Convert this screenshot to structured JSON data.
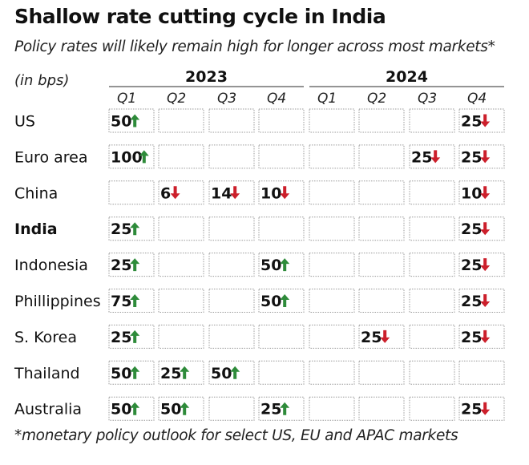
{
  "title": "Shallow rate cutting cycle in India",
  "subtitle": "Policy rates will likely remain high for longer across most markets*",
  "units_label": "(in bps)",
  "footnote": "*monetary policy outlook for select US, EU and APAC markets",
  "colors": {
    "up": "#2e8b3a",
    "down": "#cc1f2b",
    "cell_border": "#9a9a9a"
  },
  "chart_data": {
    "type": "table",
    "years": [
      {
        "label": "2023",
        "quarters": [
          "Q1",
          "Q2",
          "Q3",
          "Q4"
        ]
      },
      {
        "label": "2024",
        "quarters": [
          "Q1",
          "Q2",
          "Q3",
          "Q4"
        ]
      }
    ],
    "columns": [
      "2023 Q1",
      "2023 Q2",
      "2023 Q3",
      "2023 Q4",
      "2024 Q1",
      "2024 Q2",
      "2024 Q3",
      "2024 Q4"
    ],
    "rows": [
      {
        "name": "US",
        "bold": false,
        "cells": [
          {
            "v": 50,
            "dir": "up"
          },
          null,
          null,
          null,
          null,
          null,
          null,
          {
            "v": 25,
            "dir": "down"
          }
        ]
      },
      {
        "name": "Euro area",
        "bold": false,
        "cells": [
          {
            "v": 100,
            "dir": "up"
          },
          null,
          null,
          null,
          null,
          null,
          {
            "v": 25,
            "dir": "down"
          },
          {
            "v": 25,
            "dir": "down"
          }
        ]
      },
      {
        "name": "China",
        "bold": false,
        "cells": [
          null,
          {
            "v": 6,
            "dir": "down"
          },
          {
            "v": 14,
            "dir": "down"
          },
          {
            "v": 10,
            "dir": "down"
          },
          null,
          null,
          null,
          {
            "v": 10,
            "dir": "down"
          }
        ]
      },
      {
        "name": "India",
        "bold": true,
        "cells": [
          {
            "v": 25,
            "dir": "up"
          },
          null,
          null,
          null,
          null,
          null,
          null,
          {
            "v": 25,
            "dir": "down"
          }
        ]
      },
      {
        "name": "Indonesia",
        "bold": false,
        "cells": [
          {
            "v": 25,
            "dir": "up"
          },
          null,
          null,
          {
            "v": 50,
            "dir": "up"
          },
          null,
          null,
          null,
          {
            "v": 25,
            "dir": "down"
          }
        ]
      },
      {
        "name": "Phillippines",
        "bold": false,
        "cells": [
          {
            "v": 75,
            "dir": "up"
          },
          null,
          null,
          {
            "v": 50,
            "dir": "up"
          },
          null,
          null,
          null,
          {
            "v": 25,
            "dir": "down"
          }
        ]
      },
      {
        "name": "S. Korea",
        "bold": false,
        "cells": [
          {
            "v": 25,
            "dir": "up"
          },
          null,
          null,
          null,
          null,
          {
            "v": 25,
            "dir": "down"
          },
          null,
          {
            "v": 25,
            "dir": "down"
          }
        ]
      },
      {
        "name": "Thailand",
        "bold": false,
        "cells": [
          {
            "v": 50,
            "dir": "up"
          },
          {
            "v": 25,
            "dir": "up"
          },
          {
            "v": 50,
            "dir": "up"
          },
          null,
          null,
          null,
          null,
          null
        ]
      },
      {
        "name": "Australia",
        "bold": false,
        "cells": [
          {
            "v": 50,
            "dir": "up"
          },
          {
            "v": 50,
            "dir": "up"
          },
          null,
          {
            "v": 25,
            "dir": "up"
          },
          null,
          null,
          null,
          {
            "v": 25,
            "dir": "down"
          }
        ]
      }
    ]
  }
}
